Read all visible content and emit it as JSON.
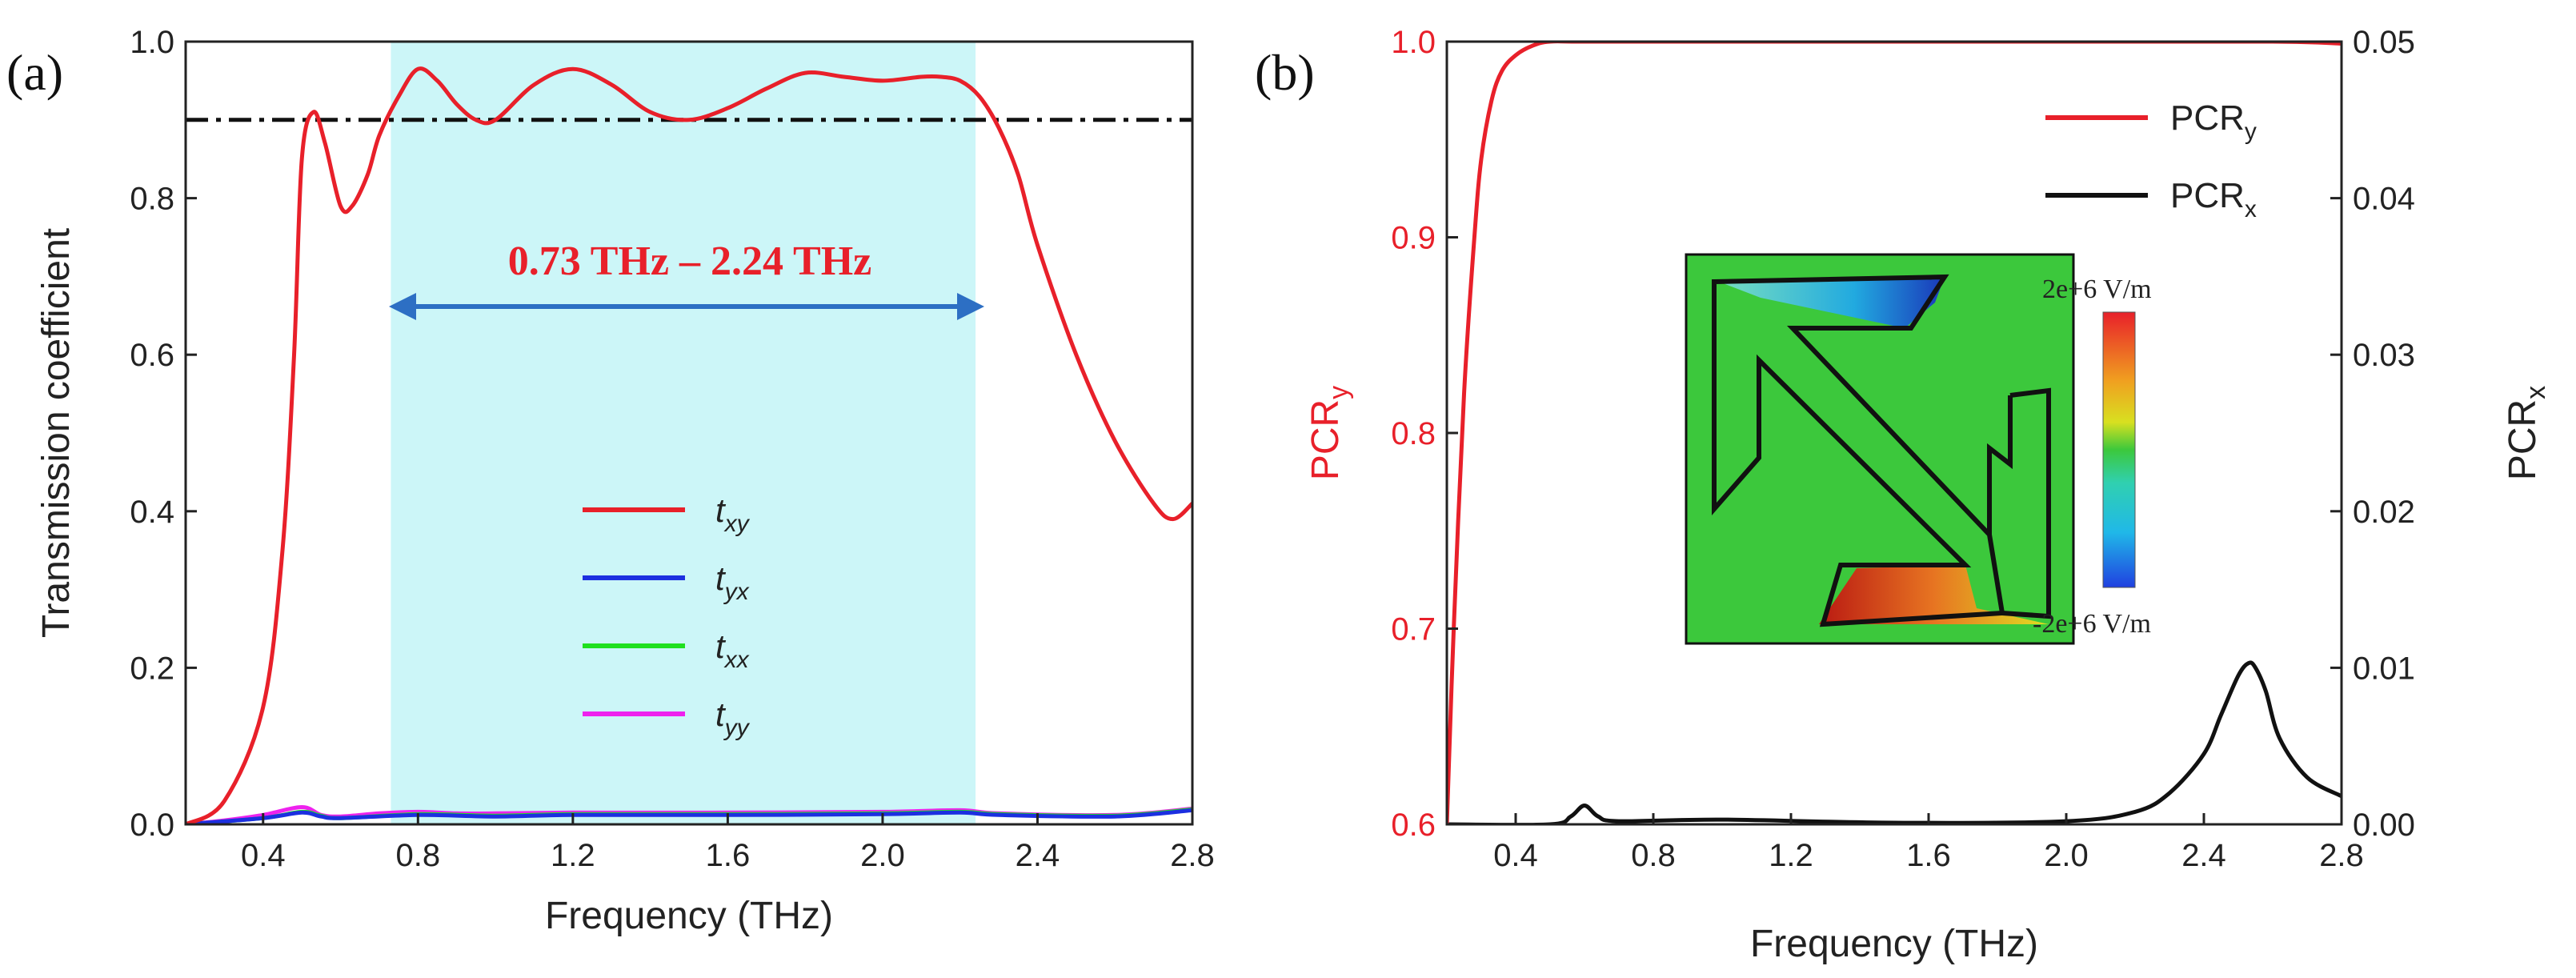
{
  "chart_data": [
    {
      "panel_label": "(a)",
      "type": "line",
      "xlabel": "Frequency (THz)",
      "ylabel": "Transmission coefficient",
      "xlim": [
        0.2,
        2.8
      ],
      "ylim": [
        0.0,
        1.0
      ],
      "xticks": [
        "0.4",
        "0.8",
        "1.2",
        "1.6",
        "2.0",
        "2.4",
        "2.8"
      ],
      "yticks": [
        "0.0",
        "0.2",
        "0.4",
        "0.6",
        "0.8",
        "1.0"
      ],
      "reference_line": 0.9,
      "highlight_band": {
        "x0": 0.73,
        "x1": 2.24,
        "color": "#ccf6f8",
        "label": "0.73 THz – 2.24 THz"
      },
      "legend_position": "center",
      "series": [
        {
          "name": "t",
          "subscript": "xy",
          "color": "#e8202a",
          "x": [
            0.2,
            0.3,
            0.4,
            0.45,
            0.48,
            0.5,
            0.53,
            0.56,
            0.6,
            0.63,
            0.67,
            0.7,
            0.75,
            0.8,
            0.85,
            0.9,
            0.95,
            1.0,
            1.1,
            1.2,
            1.3,
            1.4,
            1.5,
            1.6,
            1.7,
            1.8,
            1.9,
            2.0,
            2.1,
            2.15,
            2.2,
            2.25,
            2.3,
            2.35,
            2.4,
            2.5,
            2.6,
            2.7,
            2.75,
            2.8
          ],
          "y": [
            0.0,
            0.03,
            0.15,
            0.35,
            0.6,
            0.85,
            0.91,
            0.87,
            0.79,
            0.79,
            0.83,
            0.88,
            0.93,
            0.965,
            0.95,
            0.92,
            0.9,
            0.9,
            0.945,
            0.965,
            0.945,
            0.91,
            0.9,
            0.915,
            0.94,
            0.96,
            0.955,
            0.95,
            0.955,
            0.955,
            0.95,
            0.93,
            0.89,
            0.83,
            0.74,
            0.6,
            0.49,
            0.41,
            0.39,
            0.41
          ]
        },
        {
          "name": "t",
          "subscript": "yx",
          "color": "#1c2fe0",
          "x": [
            0.2,
            0.4,
            0.5,
            0.55,
            0.6,
            0.8,
            1.0,
            1.2,
            1.6,
            2.0,
            2.2,
            2.3,
            2.6,
            2.8
          ],
          "y": [
            0.0,
            0.008,
            0.015,
            0.01,
            0.008,
            0.012,
            0.01,
            0.012,
            0.012,
            0.013,
            0.015,
            0.012,
            0.01,
            0.018
          ]
        },
        {
          "name": "t",
          "subscript": "xx",
          "color": "#1fe01f",
          "x": [
            0.2,
            0.4,
            0.5,
            0.55,
            0.6,
            0.8,
            1.0,
            1.2,
            1.6,
            2.0,
            2.2,
            2.3,
            2.6,
            2.8
          ],
          "y": [
            0.0,
            0.008,
            0.016,
            0.011,
            0.008,
            0.013,
            0.011,
            0.013,
            0.013,
            0.014,
            0.016,
            0.013,
            0.011,
            0.019
          ]
        },
        {
          "name": "t",
          "subscript": "yy",
          "color": "#ee22ee",
          "x": [
            0.2,
            0.3,
            0.4,
            0.5,
            0.55,
            0.6,
            0.7,
            0.8,
            0.9,
            1.0,
            1.2,
            1.6,
            2.0,
            2.2,
            2.3,
            2.6,
            2.8
          ],
          "y": [
            0.0,
            0.005,
            0.012,
            0.022,
            0.012,
            0.01,
            0.014,
            0.016,
            0.014,
            0.014,
            0.015,
            0.015,
            0.016,
            0.018,
            0.014,
            0.012,
            0.02
          ]
        }
      ]
    },
    {
      "panel_label": "(b)",
      "type": "line",
      "xlabel": "Frequency (THz)",
      "ylabel_left": {
        "main": "PCR",
        "sub": "y"
      },
      "ylabel_right": {
        "main": "PCR",
        "sub": "x"
      },
      "xlim": [
        0.2,
        2.8
      ],
      "ylim_left": [
        0.6,
        1.0
      ],
      "ylim_right": [
        0.0,
        0.05
      ],
      "xticks": [
        "0.4",
        "0.8",
        "1.2",
        "1.6",
        "2.0",
        "2.4",
        "2.8"
      ],
      "yticks_left": [
        "0.6",
        "0.7",
        "0.8",
        "0.9",
        "1.0"
      ],
      "yticks_right": [
        "0.00",
        "0.01",
        "0.02",
        "0.03",
        "0.04",
        "0.05"
      ],
      "legend_position": "top-right",
      "series": [
        {
          "name": "PCR",
          "subscript": "y",
          "axis": "left",
          "color": "#e8202a",
          "x": [
            0.2,
            0.22,
            0.25,
            0.28,
            0.3,
            0.33,
            0.36,
            0.4,
            0.45,
            0.5,
            0.6,
            1.0,
            2.0,
            2.6,
            2.8
          ],
          "y": [
            0.6,
            0.7,
            0.82,
            0.9,
            0.94,
            0.97,
            0.985,
            0.993,
            0.998,
            1.0,
            1.0,
            1.0,
            1.0,
            1.0,
            0.999
          ]
        },
        {
          "name": "PCR",
          "subscript": "x",
          "axis": "right",
          "color": "#111111",
          "x": [
            0.2,
            0.5,
            0.56,
            0.6,
            0.64,
            0.7,
            1.0,
            1.5,
            2.0,
            2.2,
            2.3,
            2.4,
            2.45,
            2.5,
            2.53,
            2.55,
            2.58,
            2.62,
            2.7,
            2.8
          ],
          "y": [
            0.0,
            0.0,
            0.0005,
            0.0012,
            0.0005,
            0.0002,
            0.0003,
            0.0001,
            0.0002,
            0.0008,
            0.002,
            0.0045,
            0.007,
            0.0095,
            0.0103,
            0.01,
            0.0085,
            0.0055,
            0.003,
            0.0018
          ]
        }
      ],
      "inset": {
        "colorbar_max_label": "2e+6 V/m",
        "colorbar_min_label": "-2e+6 V/m"
      }
    }
  ]
}
